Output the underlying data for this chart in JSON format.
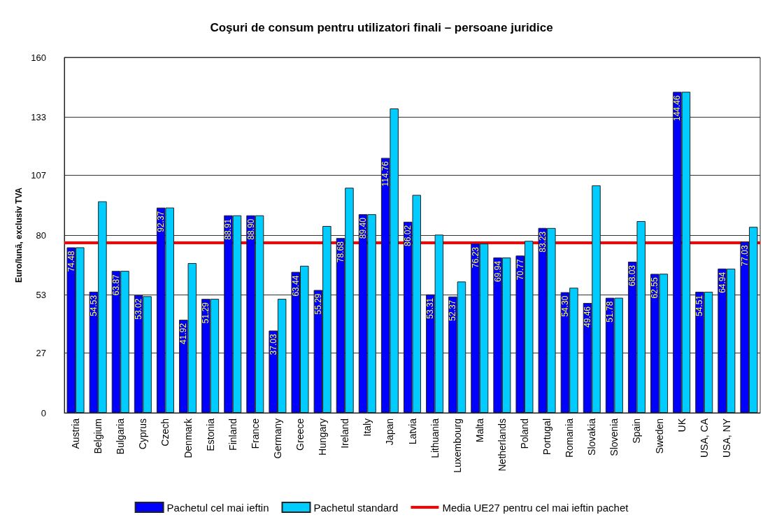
{
  "chart_data": {
    "type": "bar",
    "title": "Coşuri de consum pentru utilizatori finali – persoane juridice",
    "ylabel": "Euro/lună, exclusiv TVA",
    "categories": [
      "Austria",
      "Belgium",
      "Bulgaria",
      "Cyprus",
      "Czech",
      "Denmark",
      "Estonia",
      "Finland",
      "France",
      "Germany",
      "Greece",
      "Hungary",
      "Ireland",
      "Italy",
      "Japan",
      "Latvia",
      "Lithuania",
      "Luxembourg",
      "Malta",
      "Netherlands",
      "Poland",
      "Portugal",
      "Romania",
      "Slovakia",
      "Slovenia",
      "Spain",
      "Sweden",
      "UK",
      "USA, CA",
      "USA, NY",
      null
    ],
    "series": [
      {
        "name": "Pachetul cel mai ieftin",
        "color": "#0000ff",
        "values": [
          74.48,
          54.53,
          63.87,
          53.02,
          92.37,
          41.92,
          51.29,
          88.91,
          88.9,
          37.03,
          63.44,
          55.29,
          78.68,
          89.4,
          114.76,
          86.02,
          53.31,
          52.37,
          76.23,
          69.94,
          70.77,
          83.23,
          54.3,
          49.46,
          51.78,
          68.03,
          62.55,
          144.46,
          54.51,
          64.94,
          77.03
        ],
        "value_labels": [
          "74.48",
          "54.53",
          "63.87",
          "53.02",
          "92.37",
          "41.92",
          "51.29",
          "88.91",
          "88.90",
          "37.03",
          "63.44",
          "55.29",
          "78.68",
          "89.40",
          "114.76",
          "86.02",
          "53.31",
          "52.37",
          "76.23",
          "69.94",
          "70.77",
          "83.23",
          "54.30",
          "49.46",
          "51.78",
          "68.03",
          "62.55",
          "144.46",
          "54.51",
          "64.94",
          "77.03"
        ]
      },
      {
        "name": "Pachetul standard",
        "color": "#00ccff",
        "values": [
          74.5,
          95.2,
          63.9,
          52.5,
          92.4,
          67.4,
          51.3,
          88.9,
          88.9,
          51.3,
          66.2,
          84.1,
          101.3,
          89.4,
          137.0,
          98.1,
          80.2,
          59.1,
          76.2,
          69.9,
          77.4,
          83.2,
          56.3,
          102.4,
          51.8,
          86.3,
          62.6,
          144.5,
          54.5,
          64.9,
          83.7
        ]
      }
    ],
    "ref_lines": [
      {
        "axis": "y",
        "value": 76.6,
        "label": "Media UE27 pentru cel mai ieftin pachet",
        "color": "#ff0000"
      }
    ],
    "ylim": [
      0,
      160
    ],
    "yticks": [
      0,
      27,
      53,
      80,
      107,
      133,
      160
    ],
    "grid": "y",
    "legend": "bottom"
  }
}
